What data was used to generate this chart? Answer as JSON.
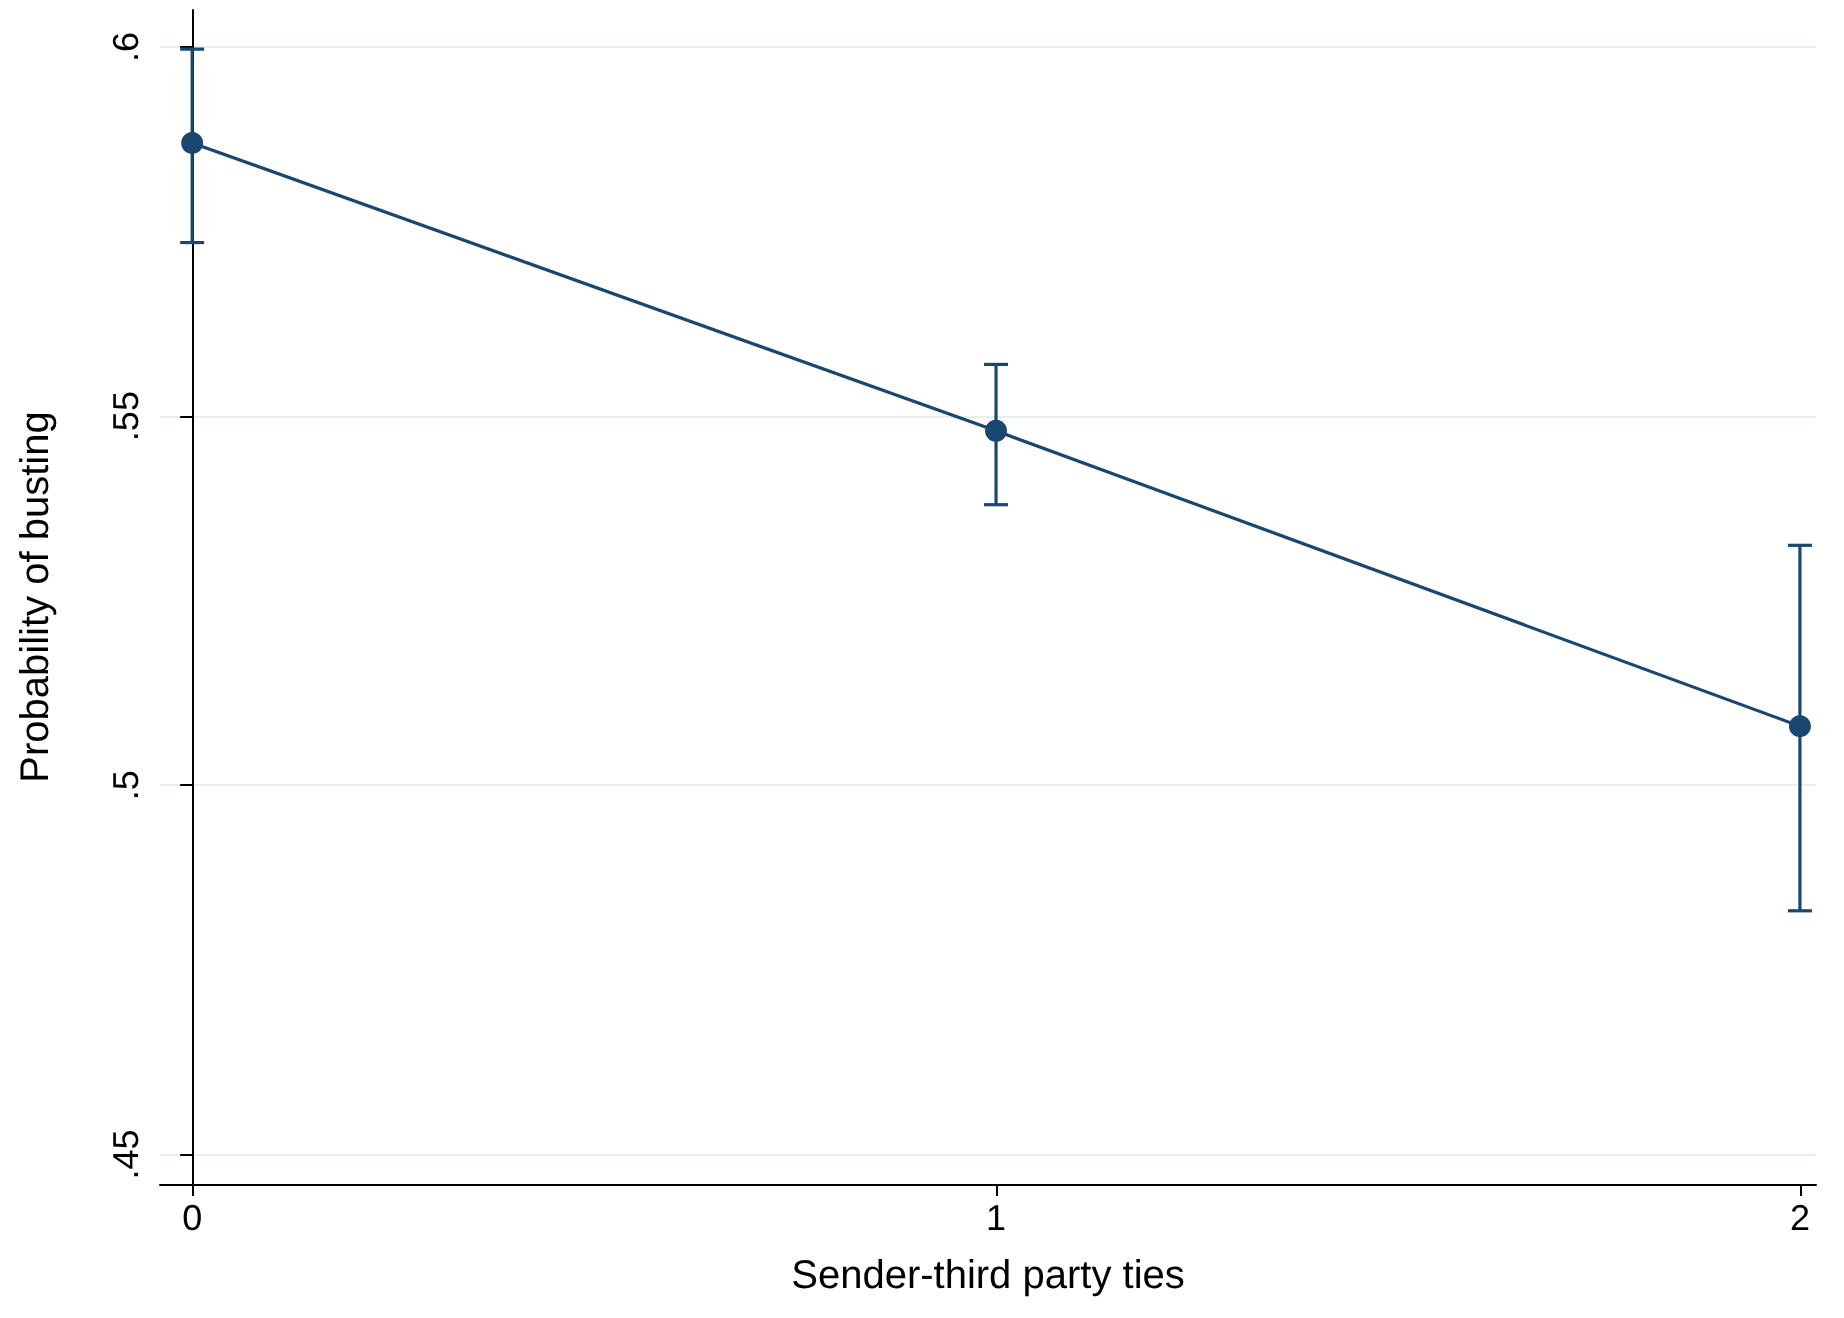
{
  "chart_data": {
    "type": "line",
    "xlabel": "Sender-third party ties",
    "ylabel": "Probability of busting",
    "x": [
      0,
      1,
      2
    ],
    "series": [
      {
        "color": "#1a476f",
        "values": [
          0.587,
          0.548,
          0.508
        ],
        "errors": [
          [
            0.5735,
            0.5997
          ],
          [
            0.538,
            0.557
          ],
          [
            0.483,
            0.5325
          ]
        ]
      }
    ],
    "xlim": [
      -0.04,
      2.02
    ],
    "xticks": [
      0,
      1,
      2
    ],
    "ylim": [
      0.446,
      0.605
    ],
    "yticks": [
      {
        "value": 0.45,
        "label": ".45"
      },
      {
        "value": 0.5,
        "label": ".5"
      },
      {
        "value": 0.55,
        "label": ".55"
      },
      {
        "value": 0.6,
        "label": ".6"
      }
    ],
    "grid": "y",
    "marker": "circle",
    "line_style": "solid"
  }
}
